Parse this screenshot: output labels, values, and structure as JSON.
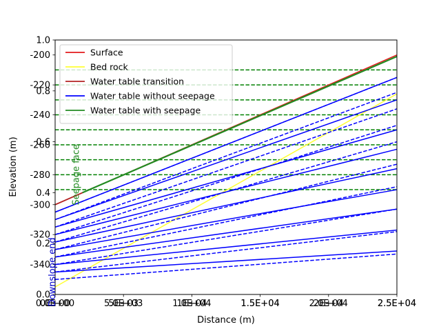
{
  "chart_data": {
    "type": "line",
    "xlabel": "Distance (m)",
    "ylabel": "Elevation (m)",
    "xlim": [
      0,
      25000
    ],
    "ylim": [
      -360,
      -190
    ],
    "overlay_ylim": [
      0,
      1
    ],
    "grid": false,
    "legend_position": "top-left",
    "x_ticks": [
      {
        "value": 0,
        "labels": [
          "0.0E+00",
          "0E+00"
        ]
      },
      {
        "value": 5000,
        "labels": [
          "5.0E+03",
          "5E+03"
        ]
      },
      {
        "value": 10000,
        "labels": [
          "1.0E+04",
          "1E+04"
        ]
      },
      {
        "value": 15000,
        "labels": [
          "1.5E+04",
          "1.5E+04"
        ]
      },
      {
        "value": 20000,
        "labels": [
          "2.0E+04",
          "2E+04"
        ]
      },
      {
        "value": 25000,
        "labels": [
          "2.5E+04",
          "2.5E+04"
        ]
      }
    ],
    "y_ticks": [
      "-200",
      "-220",
      "-240",
      "-260",
      "-280",
      "-300",
      "-320",
      "-340"
    ],
    "y_tick_values": [
      -200,
      -220,
      -240,
      -260,
      -280,
      -300,
      -320,
      -340
    ],
    "overlay_y_ticks": [
      "0.0",
      "0.2",
      "0.4",
      "0.6",
      "0.8",
      "1.0"
    ],
    "overlay_y_tick_values": [
      0.0,
      0.2,
      0.4,
      0.6,
      0.8,
      1.0
    ],
    "annotations": [
      {
        "text": "Downslope end",
        "color": "#0000cc",
        "x": 0,
        "y": -345
      },
      {
        "text": "Seepage face",
        "color": "#228b22",
        "x": 1750,
        "y": -280
      }
    ],
    "series": [
      {
        "name": "Surface",
        "color": "#e31a1c",
        "style": "solid",
        "x": [
          0,
          25000
        ],
        "y": [
          -300,
          -200
        ]
      },
      {
        "name": "Bed rock",
        "color": "#ffff33",
        "style": "solid",
        "x": [
          0,
          25000
        ],
        "y": [
          -355,
          -226
        ]
      },
      {
        "name": "Water table transition",
        "color": "#b22222",
        "style": "solid",
        "x": [
          0,
          2000
        ],
        "y": [
          -300,
          -292
        ]
      },
      {
        "name": "Water table without seepage",
        "color": "#0000ff",
        "style": "solid",
        "x": [
          0,
          25000
        ],
        "y": [
          -305,
          -215
        ]
      },
      {
        "name": "Water table with seepage",
        "color": "#228b22",
        "style": "solid",
        "x": [
          2000,
          25000
        ],
        "y": [
          -292,
          -201
        ]
      }
    ],
    "solid_water_tables": [
      {
        "x": [
          0,
          25000
        ],
        "y": [
          -305,
          -215
        ]
      },
      {
        "x": [
          0,
          25000
        ],
        "y": [
          -310,
          -230
        ]
      },
      {
        "x": [
          0,
          25000
        ],
        "y": [
          -315,
          -250
        ]
      },
      {
        "x": [
          0,
          25000
        ],
        "y": [
          -320,
          -263
        ]
      },
      {
        "x": [
          0,
          25000
        ],
        "y": [
          -325,
          -276
        ]
      },
      {
        "x": [
          0,
          25000
        ],
        "y": [
          -330,
          -290
        ]
      },
      {
        "x": [
          0,
          25000
        ],
        "y": [
          -335,
          -303
        ]
      },
      {
        "x": [
          0,
          25000
        ],
        "y": [
          -340,
          -317
        ]
      },
      {
        "x": [
          0,
          25000
        ],
        "y": [
          -345,
          -331
        ]
      }
    ],
    "dashed_water_tables": [
      {
        "x": [
          0,
          25000
        ],
        "y": [
          -305,
          -215
        ]
      },
      {
        "x": [
          0,
          25000
        ],
        "y": [
          -310,
          -225
        ]
      },
      {
        "x": [
          0,
          25000
        ],
        "y": [
          -315,
          -236
        ]
      },
      {
        "x": [
          0,
          25000
        ],
        "y": [
          -320,
          -247
        ]
      },
      {
        "x": [
          0,
          25000
        ],
        "y": [
          -325,
          -258
        ]
      },
      {
        "x": [
          0,
          25000
        ],
        "y": [
          -330,
          -273
        ]
      },
      {
        "x": [
          0,
          25000
        ],
        "y": [
          -335,
          -288
        ]
      },
      {
        "x": [
          0,
          25000
        ],
        "y": [
          -340,
          -303
        ]
      },
      {
        "x": [
          0,
          25000
        ],
        "y": [
          -345,
          -318
        ]
      },
      {
        "x": [
          0,
          25000
        ],
        "y": [
          -350,
          -333
        ]
      }
    ],
    "seepage_levels": [
      -210,
      -220,
      -230,
      -240,
      -250,
      -260,
      -270,
      -280,
      -290
    ],
    "seepage_level_style": {
      "color": "#008000",
      "style": "dashed"
    }
  }
}
